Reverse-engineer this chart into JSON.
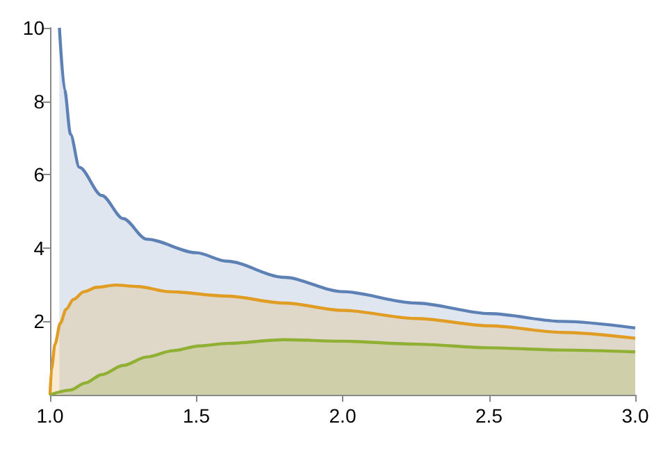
{
  "chart_data": {
    "type": "area",
    "series": [
      {
        "color": "#5e81b5",
        "x": [
          1.032,
          1.05,
          1.07,
          1.1,
          1.177,
          1.25,
          1.33,
          1.5,
          1.604,
          1.8,
          2.0,
          2.25,
          2.504,
          2.75,
          3.0
        ],
        "values": [
          10,
          8.3,
          7.1,
          6.2,
          5.43,
          4.8,
          4.24,
          3.87,
          3.64,
          3.2,
          2.81,
          2.5,
          2.21,
          2.0,
          1.82
        ]
      },
      {
        "color": "#e19c24",
        "x": [
          1.0,
          1.005,
          1.017,
          1.035,
          1.055,
          1.08,
          1.116,
          1.16,
          1.223,
          1.3,
          1.406,
          1.604,
          1.8,
          2.0,
          2.25,
          2.504,
          2.75,
          3.0
        ],
        "values": [
          0,
          0.7,
          1.38,
          1.95,
          2.33,
          2.6,
          2.81,
          2.93,
          2.99,
          2.95,
          2.81,
          2.69,
          2.5,
          2.3,
          2.08,
          1.88,
          1.7,
          1.54
        ]
      },
      {
        "color": "#8fb032",
        "x": [
          1.0,
          1.07,
          1.12,
          1.177,
          1.25,
          1.33,
          1.42,
          1.51,
          1.604,
          1.8,
          2.0,
          2.25,
          2.5,
          2.75,
          3.0
        ],
        "values": [
          0,
          0.13,
          0.32,
          0.55,
          0.8,
          1.03,
          1.2,
          1.33,
          1.4,
          1.5,
          1.46,
          1.38,
          1.28,
          1.22,
          1.17
        ]
      }
    ],
    "xlim": [
      1,
      3
    ],
    "xticks": [
      {
        "value": 1,
        "label": "1.0"
      },
      1.5,
      {
        "value": 2,
        "label": "2.0"
      },
      2.5,
      {
        "value": 3,
        "label": "3.0"
      }
    ],
    "ylim": [
      0,
      10
    ],
    "yticks": [
      2,
      4,
      6,
      8,
      10
    ]
  }
}
